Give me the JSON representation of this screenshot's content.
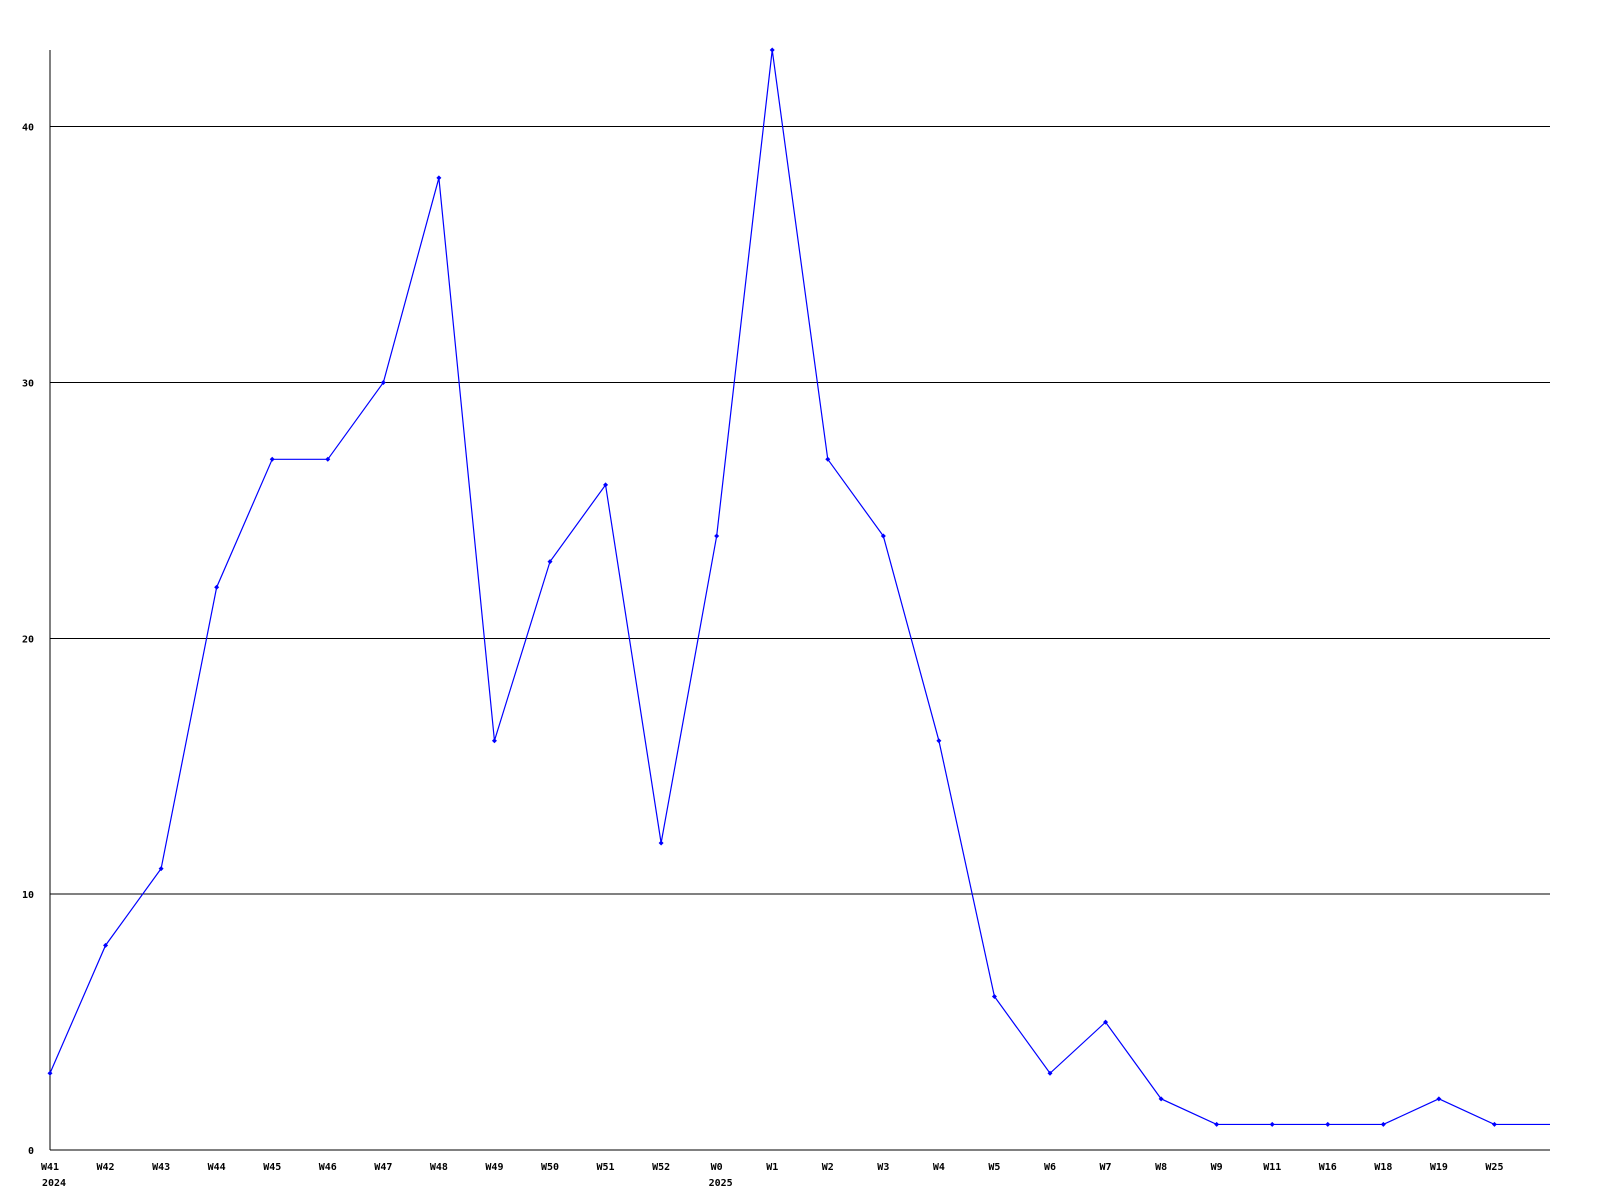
{
  "chart_data": {
    "type": "line",
    "title": "",
    "xlabel": "",
    "ylabel": "",
    "categories": [
      "W41",
      "W42",
      "W43",
      "W44",
      "W45",
      "W46",
      "W47",
      "W48",
      "W49",
      "W50",
      "W51",
      "W52",
      "W0",
      "W1",
      "W2",
      "W3",
      "W4",
      "W5",
      "W6",
      "W7",
      "W8",
      "W9",
      "W11",
      "W16",
      "W18",
      "W19",
      "W25"
    ],
    "year_labels": {
      "W41": "2024",
      "W0": "2025"
    },
    "values": [
      3,
      8,
      11,
      22,
      27,
      27,
      30,
      38,
      16,
      23,
      26,
      12,
      24,
      43,
      27,
      24,
      16,
      6,
      3,
      5,
      2,
      1,
      1,
      1,
      1,
      2,
      1
    ],
    "ylim": [
      0,
      43
    ],
    "yticks": [
      0,
      10,
      20,
      30,
      40
    ],
    "grid": true,
    "legend": "none",
    "colors": {
      "line": "#0000ff",
      "grid": "#000000",
      "axis": "#000000"
    }
  }
}
